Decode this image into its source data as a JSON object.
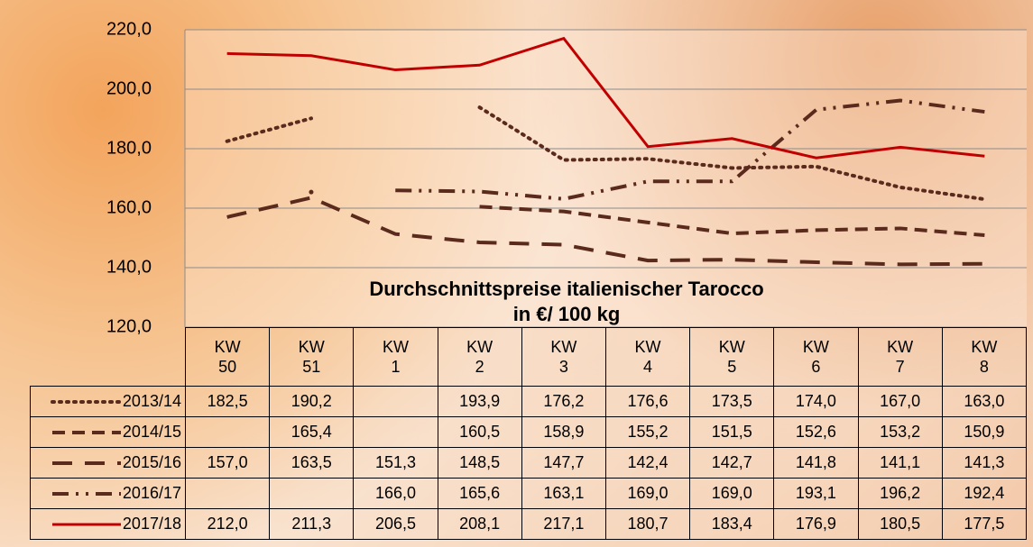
{
  "chart_data": {
    "type": "line",
    "title": "Durchschnittspreise italienischer Tarocco",
    "subtitle": "in €/ 100 kg",
    "categories": [
      "KW 50",
      "KW 51",
      "KW 1",
      "KW 2",
      "KW 3",
      "KW 4",
      "KW 5",
      "KW 6",
      "KW 7",
      "KW 8"
    ],
    "ylim": [
      120,
      220
    ],
    "yticks": [
      {
        "value": 120,
        "label": "120,0"
      },
      {
        "value": 140,
        "label": "140,0"
      },
      {
        "value": 160,
        "label": "160,0"
      },
      {
        "value": 180,
        "label": "180,0"
      },
      {
        "value": 200,
        "label": "200,0"
      },
      {
        "value": 220,
        "label": "220,0"
      }
    ],
    "grid": true,
    "series": [
      {
        "name": "2013/14",
        "color": "#5a2a1c",
        "dash": "dotted",
        "values": [
          182.5,
          190.2,
          null,
          193.9,
          176.2,
          176.6,
          173.5,
          174.0,
          167.0,
          163.0
        ],
        "value_labels": [
          "182,5",
          "190,2",
          null,
          "193,9",
          "176,2",
          "176,6",
          "173,5",
          "174,0",
          "167,0",
          "163,0"
        ]
      },
      {
        "name": "2014/15",
        "color": "#5a2a1c",
        "dash": "dashed",
        "values": [
          null,
          165.4,
          null,
          160.5,
          158.9,
          155.2,
          151.5,
          152.6,
          153.2,
          150.9
        ],
        "value_labels": [
          null,
          "165,4",
          null,
          "160,5",
          "158,9",
          "155,2",
          "151,5",
          "152,6",
          "153,2",
          "150,9"
        ]
      },
      {
        "name": "2015/16",
        "color": "#5a2a1c",
        "dash": "long-dashed",
        "values": [
          157.0,
          163.5,
          151.3,
          148.5,
          147.7,
          142.4,
          142.7,
          141.8,
          141.1,
          141.3
        ],
        "value_labels": [
          "157,0",
          "163,5",
          "151,3",
          "148,5",
          "147,7",
          "142,4",
          "142,7",
          "141,8",
          "141,1",
          "141,3"
        ]
      },
      {
        "name": "2016/17",
        "color": "#5a2a1c",
        "dash": "dash-dot-dot",
        "values": [
          null,
          null,
          166.0,
          165.6,
          163.1,
          169.0,
          169.0,
          193.1,
          196.2,
          192.4
        ],
        "value_labels": [
          null,
          null,
          "166,0",
          "165,6",
          "163,1",
          "169,0",
          "169,0",
          "193,1",
          "196,2",
          "192,4"
        ]
      },
      {
        "name": "2017/18",
        "color": "#c00000",
        "dash": "solid",
        "values": [
          212.0,
          211.3,
          206.5,
          208.1,
          217.1,
          180.7,
          183.4,
          176.9,
          180.5,
          177.5
        ],
        "value_labels": [
          "212,0",
          "211,3",
          "206,5",
          "208,1",
          "217,1",
          "180,7",
          "183,4",
          "176,9",
          "180,5",
          "177,5"
        ]
      }
    ]
  }
}
